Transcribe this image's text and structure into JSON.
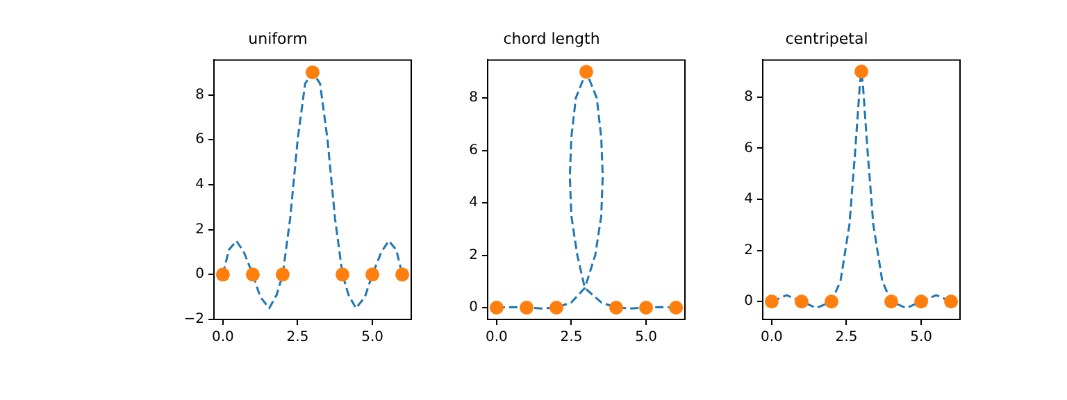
{
  "chart_data": [
    {
      "type": "line",
      "title": "uniform",
      "xlim": [
        -0.3,
        6.3
      ],
      "ylim": [
        -2,
        9.55
      ],
      "xticks": [
        {
          "value": 0,
          "label": "0.0"
        },
        {
          "value": 2.5,
          "label": "2.5"
        },
        {
          "value": 5,
          "label": "5.0"
        }
      ],
      "yticks": [
        {
          "value": -2,
          "label": "−2"
        },
        0,
        2,
        4,
        6,
        8
      ],
      "grid": false,
      "legend": false,
      "series": [
        {
          "type": "line",
          "color": "#1f77b4",
          "line_style": "dashed",
          "marker": "none",
          "x": [
            0,
            0.2,
            0.45,
            0.7,
            1,
            1.25,
            1.55,
            1.8,
            2,
            2.25,
            2.5,
            2.75,
            3,
            3.25,
            3.5,
            3.75,
            4,
            4.2,
            4.45,
            4.75,
            5,
            5.3,
            5.55,
            5.8,
            6
          ],
          "values": [
            0,
            1.1,
            1.5,
            1,
            0,
            -1,
            -1.5,
            -0.9,
            0,
            2.5,
            6,
            8.5,
            9,
            8.5,
            6,
            2.5,
            0,
            -0.9,
            -1.5,
            -1,
            0,
            1,
            1.5,
            1.1,
            0
          ]
        },
        {
          "type": "scatter",
          "color": "#ff7f0e",
          "marker": "circle",
          "x": [
            0,
            1,
            2,
            3,
            4,
            5,
            6
          ],
          "values": [
            0,
            0,
            0,
            9,
            0,
            0,
            0
          ]
        }
      ]
    },
    {
      "type": "line",
      "title": "chord length",
      "xlim": [
        -0.3,
        6.3
      ],
      "ylim": [
        -0.45,
        9.45
      ],
      "xticks": [
        {
          "value": 0,
          "label": "0.0"
        },
        {
          "value": 2.5,
          "label": "2.5"
        },
        {
          "value": 5,
          "label": "5.0"
        }
      ],
      "yticks": [
        0,
        2,
        4,
        6,
        8
      ],
      "grid": false,
      "legend": false,
      "series": [
        {
          "type": "line",
          "color": "#1f77b4",
          "line_style": "dashed",
          "marker": "none",
          "x": [
            0,
            0.5,
            1,
            1.5,
            2,
            2.5,
            2.95,
            3.3,
            3.5,
            3.55,
            3.5,
            3.35,
            3,
            2.65,
            2.5,
            2.45,
            2.5,
            2.7,
            2.95,
            3.5,
            4,
            4.5,
            5,
            5.5,
            6
          ],
          "values": [
            0,
            0.02,
            0,
            -0.03,
            0,
            0.2,
            0.75,
            2,
            3.5,
            5,
            6.5,
            8,
            9,
            8,
            6.5,
            5,
            3.5,
            2,
            0.75,
            0.2,
            0,
            -0.03,
            0,
            0.02,
            0
          ]
        },
        {
          "type": "scatter",
          "color": "#ff7f0e",
          "marker": "circle",
          "x": [
            0,
            1,
            2,
            3,
            4,
            5,
            6
          ],
          "values": [
            0,
            0,
            0,
            9,
            0,
            0,
            0
          ]
        }
      ]
    },
    {
      "type": "line",
      "title": "centripetal",
      "xlim": [
        -0.3,
        6.3
      ],
      "ylim": [
        -0.7,
        9.45
      ],
      "xticks": [
        {
          "value": 0,
          "label": "0.0"
        },
        {
          "value": 2.5,
          "label": "2.5"
        },
        {
          "value": 5,
          "label": "5.0"
        }
      ],
      "yticks": [
        0,
        2,
        4,
        6,
        8
      ],
      "grid": false,
      "legend": false,
      "series": [
        {
          "type": "line",
          "color": "#1f77b4",
          "line_style": "dashed",
          "marker": "none",
          "x": [
            0,
            0.5,
            1,
            1.5,
            2,
            2.3,
            2.6,
            2.8,
            2.95,
            3,
            3.05,
            3.2,
            3.4,
            3.7,
            4,
            4.5,
            5,
            5.5,
            6
          ],
          "values": [
            0,
            0.25,
            0,
            -0.25,
            0,
            0.8,
            3,
            6,
            8.5,
            9,
            8.5,
            6,
            3,
            0.8,
            0,
            -0.25,
            0,
            0.25,
            0
          ]
        },
        {
          "type": "scatter",
          "color": "#ff7f0e",
          "marker": "circle",
          "x": [
            0,
            1,
            2,
            3,
            4,
            5,
            6
          ],
          "values": [
            0,
            0,
            0,
            9,
            0,
            0,
            0
          ]
        }
      ]
    }
  ]
}
